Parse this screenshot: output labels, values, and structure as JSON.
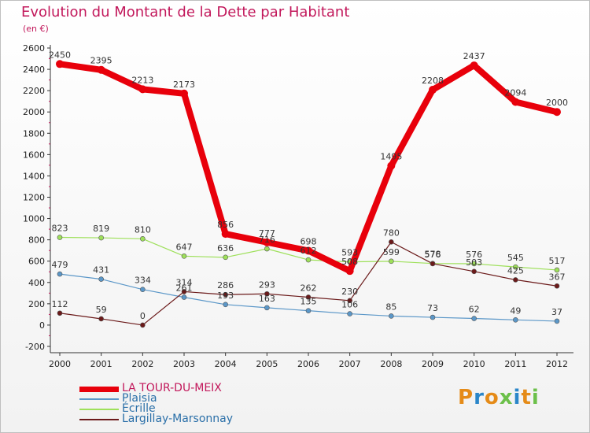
{
  "chart_data": {
    "type": "line",
    "title": "Evolution du Montant de la Dette par Habitant",
    "subtitle": "(en €)",
    "x": [
      "2000",
      "2001",
      "2002",
      "2003",
      "2004",
      "2005",
      "2006",
      "2007",
      "2008",
      "2009",
      "2010",
      "2011",
      "2012"
    ],
    "ylim": [
      -200,
      2600
    ],
    "yticks": [
      "-200",
      "0",
      "200",
      "400",
      "600",
      "800",
      "1000",
      "1200",
      "1400",
      "1600",
      "1800",
      "2000",
      "2200",
      "2400",
      "2600"
    ],
    "grid": false,
    "legend_position": "bottom-left",
    "series": [
      {
        "name": "LA TOUR-DU-MEIX",
        "color": "#e8000b",
        "values": [
          2450,
          2395,
          2213,
          2173,
          856,
          777,
          698,
          508,
          1495,
          2208,
          2437,
          2094,
          2000
        ],
        "labels": [
          "2450",
          "2395",
          "2213",
          "2173",
          "856",
          "777",
          "698",
          "508",
          "1495",
          "2208",
          "2437",
          "2094",
          "2000"
        ]
      },
      {
        "name": "Plaisia",
        "color": "#5b97c8",
        "values": [
          479,
          431,
          334,
          261,
          193,
          163,
          135,
          106,
          85,
          73,
          62,
          49,
          37
        ],
        "labels": [
          "479",
          "431",
          "334",
          "261",
          "193",
          "163",
          "135",
          "106",
          "85",
          "73",
          "62",
          "49",
          "37"
        ]
      },
      {
        "name": "Écrille",
        "color": "#9ee05a",
        "values": [
          823,
          819,
          810,
          647,
          636,
          716,
          612,
          593,
          599,
          578,
          576,
          545,
          517
        ],
        "labels": [
          "823",
          "819",
          "810",
          "647",
          "636",
          "716",
          "612",
          "593",
          "599",
          "578",
          "576",
          "545",
          "517"
        ]
      },
      {
        "name": "Largillay-Marsonnay",
        "color": "#6b1a1a",
        "values": [
          112,
          59,
          0,
          314,
          286,
          293,
          262,
          230,
          780,
          576,
          503,
          425,
          367
        ],
        "labels": [
          "112",
          "59",
          "0",
          "314",
          "286",
          "293",
          "262",
          "230",
          "780",
          "576",
          "503",
          "425",
          "367"
        ]
      }
    ]
  },
  "logo": {
    "text": "Proxiti",
    "colors": [
      "#e58b18",
      "#2a86c9",
      "#e58b18",
      "#6cc04a",
      "#2a86c9",
      "#e58b18",
      "#6cc04a"
    ]
  }
}
